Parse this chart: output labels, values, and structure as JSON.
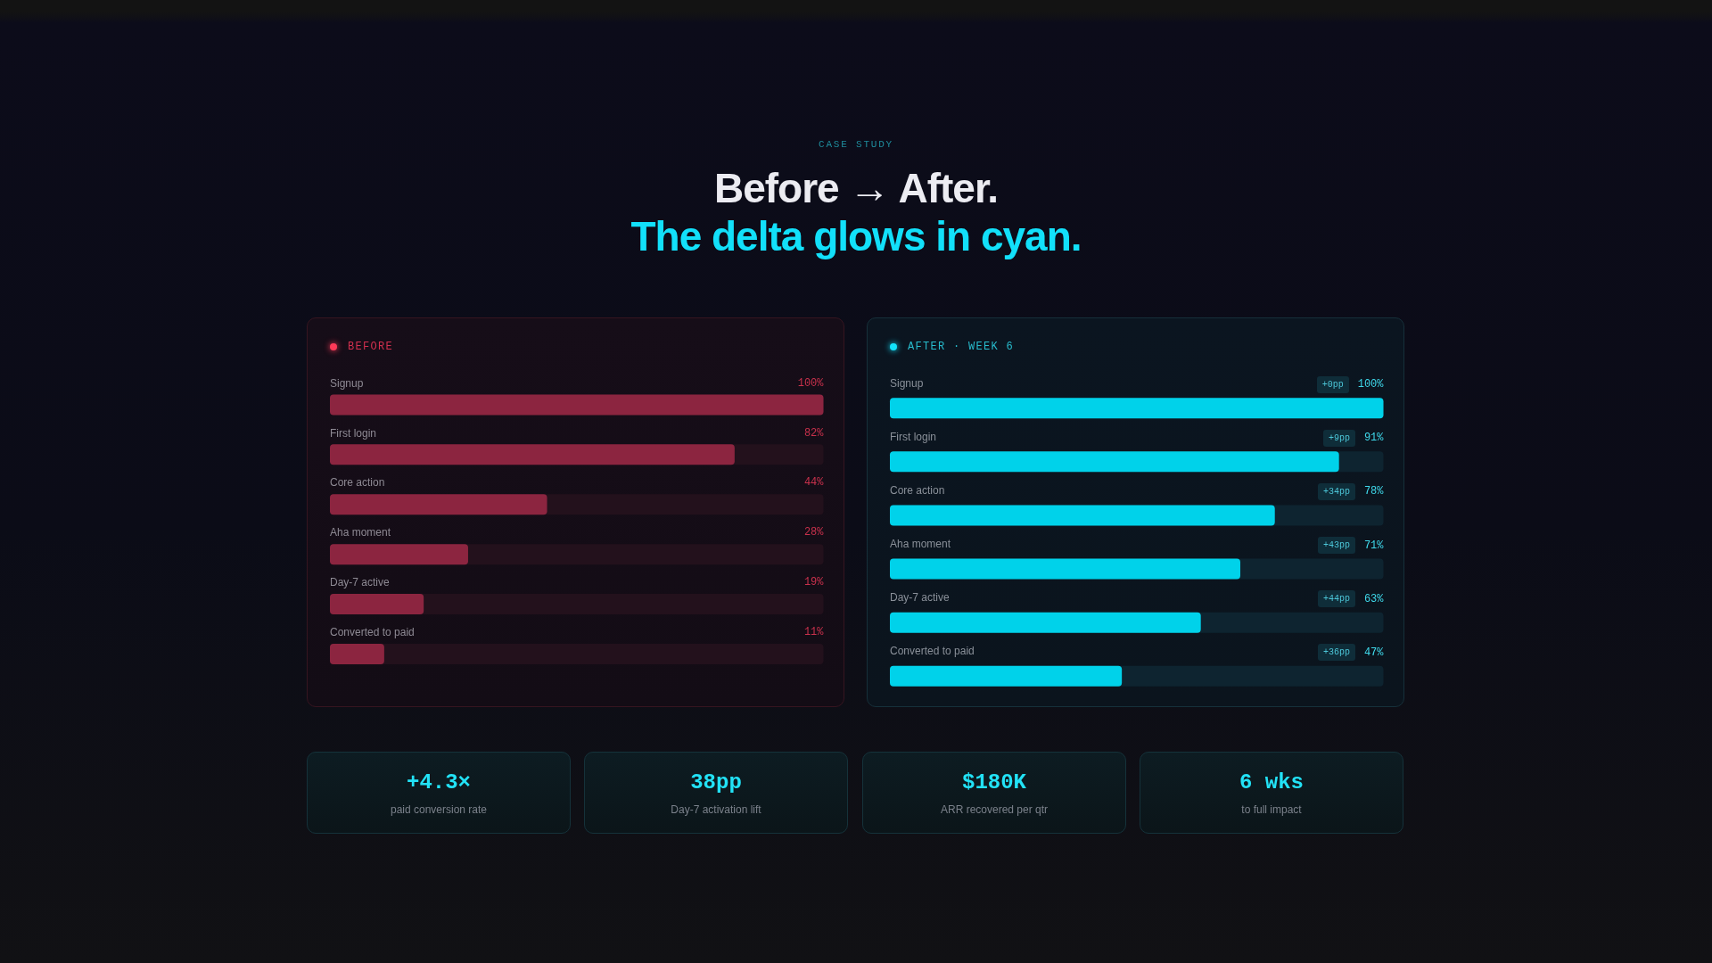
{
  "chart_data": [
    {
      "type": "other",
      "annotations": [
        "CASE STUDY"
      ],
      "title": "Before → After.",
      "subtitle": "The delta glows in cyan."
    },
    {
      "type": "bar",
      "orientation": "horizontal",
      "title": "BEFORE",
      "categories": [
        "Signup",
        "First login",
        "Core action",
        "Aha moment",
        "Day-7 active",
        "Converted to paid"
      ],
      "values": [
        100,
        82,
        44,
        28,
        19,
        11
      ],
      "value_labels": [
        "100%",
        "82%",
        "44%",
        "28%",
        "19%",
        "11%"
      ],
      "color": "#8c2540",
      "xlim": [
        0,
        100
      ],
      "tick_labels": "y"
    },
    {
      "type": "bar",
      "orientation": "horizontal",
      "title": "AFTER · WEEK 6",
      "categories": [
        "Signup",
        "First login",
        "Core action",
        "Aha moment",
        "Day-7 active",
        "Converted to paid"
      ],
      "values": [
        100,
        91,
        78,
        71,
        63,
        47
      ],
      "value_labels": [
        "100%",
        "91%",
        "78%",
        "71%",
        "63%",
        "47%"
      ],
      "color": "#00d2ea",
      "xlim": [
        0,
        100
      ],
      "tick_labels": "y",
      "annotations": [
        "+0pp",
        "+9pp",
        "+34pp",
        "+43pp",
        "+44pp",
        "+36pp"
      ]
    },
    {
      "type": "other",
      "title": "+4.3×",
      "subtitle": "paid conversion rate"
    },
    {
      "type": "other",
      "title": "38pp",
      "subtitle": "Day-7 activation lift"
    },
    {
      "type": "other",
      "title": "$180K",
      "subtitle": "ARR recovered per qtr"
    },
    {
      "type": "other",
      "title": "6 wks",
      "subtitle": "to full impact"
    }
  ]
}
